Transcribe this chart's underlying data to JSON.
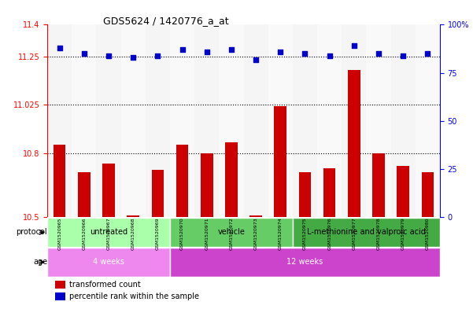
{
  "title": "GDS5624 / 1420776_a_at",
  "samples": [
    "GSM1520965",
    "GSM1520966",
    "GSM1520967",
    "GSM1520968",
    "GSM1520969",
    "GSM1520970",
    "GSM1520971",
    "GSM1520972",
    "GSM1520973",
    "GSM1520974",
    "GSM1520975",
    "GSM1520976",
    "GSM1520977",
    "GSM1520978",
    "GSM1520979",
    "GSM1520980"
  ],
  "bar_values": [
    10.84,
    10.71,
    10.75,
    10.51,
    10.72,
    10.84,
    10.8,
    10.85,
    10.51,
    11.02,
    10.71,
    10.73,
    11.19,
    10.8,
    10.74,
    10.71
  ],
  "bar_base": 10.5,
  "percentile_values": [
    88,
    85,
    84,
    83,
    84,
    87,
    86,
    87,
    82,
    86,
    85,
    84,
    89,
    85,
    84,
    85
  ],
  "bar_color": "#cc0000",
  "dot_color": "#0000cc",
  "ylim_left": [
    10.5,
    11.4
  ],
  "ylim_right": [
    0,
    100
  ],
  "yticks_left": [
    10.5,
    10.8,
    11.025,
    11.25,
    11.4
  ],
  "ytick_labels_left": [
    "10.5",
    "10.8",
    "11.025",
    "11.25",
    "11.4"
  ],
  "yticks_right": [
    0,
    25,
    50,
    75,
    100
  ],
  "ytick_labels_right": [
    "0",
    "25",
    "50",
    "75",
    "100%"
  ],
  "hlines": [
    10.8,
    11.025,
    11.25
  ],
  "protocol_groups": [
    {
      "label": "untreated",
      "start": 0,
      "end": 5,
      "color": "#aaffaa"
    },
    {
      "label": "vehicle",
      "start": 5,
      "end": 10,
      "color": "#66cc66"
    },
    {
      "label": "L-methionine and valproic acid",
      "start": 10,
      "end": 16,
      "color": "#44aa44"
    }
  ],
  "age_groups": [
    {
      "label": "4 weeks",
      "start": 0,
      "end": 5,
      "color": "#ee88ee"
    },
    {
      "label": "12 weeks",
      "start": 5,
      "end": 16,
      "color": "#cc44cc"
    }
  ],
  "protocol_label": "protocol",
  "age_label": "age",
  "legend_items": [
    {
      "label": "transformed count",
      "color": "#cc0000"
    },
    {
      "label": "percentile rank within the sample",
      "color": "#0000cc"
    }
  ],
  "bar_width": 0.5,
  "bg_color": "#e8e8e8",
  "plot_bg": "#ffffff"
}
